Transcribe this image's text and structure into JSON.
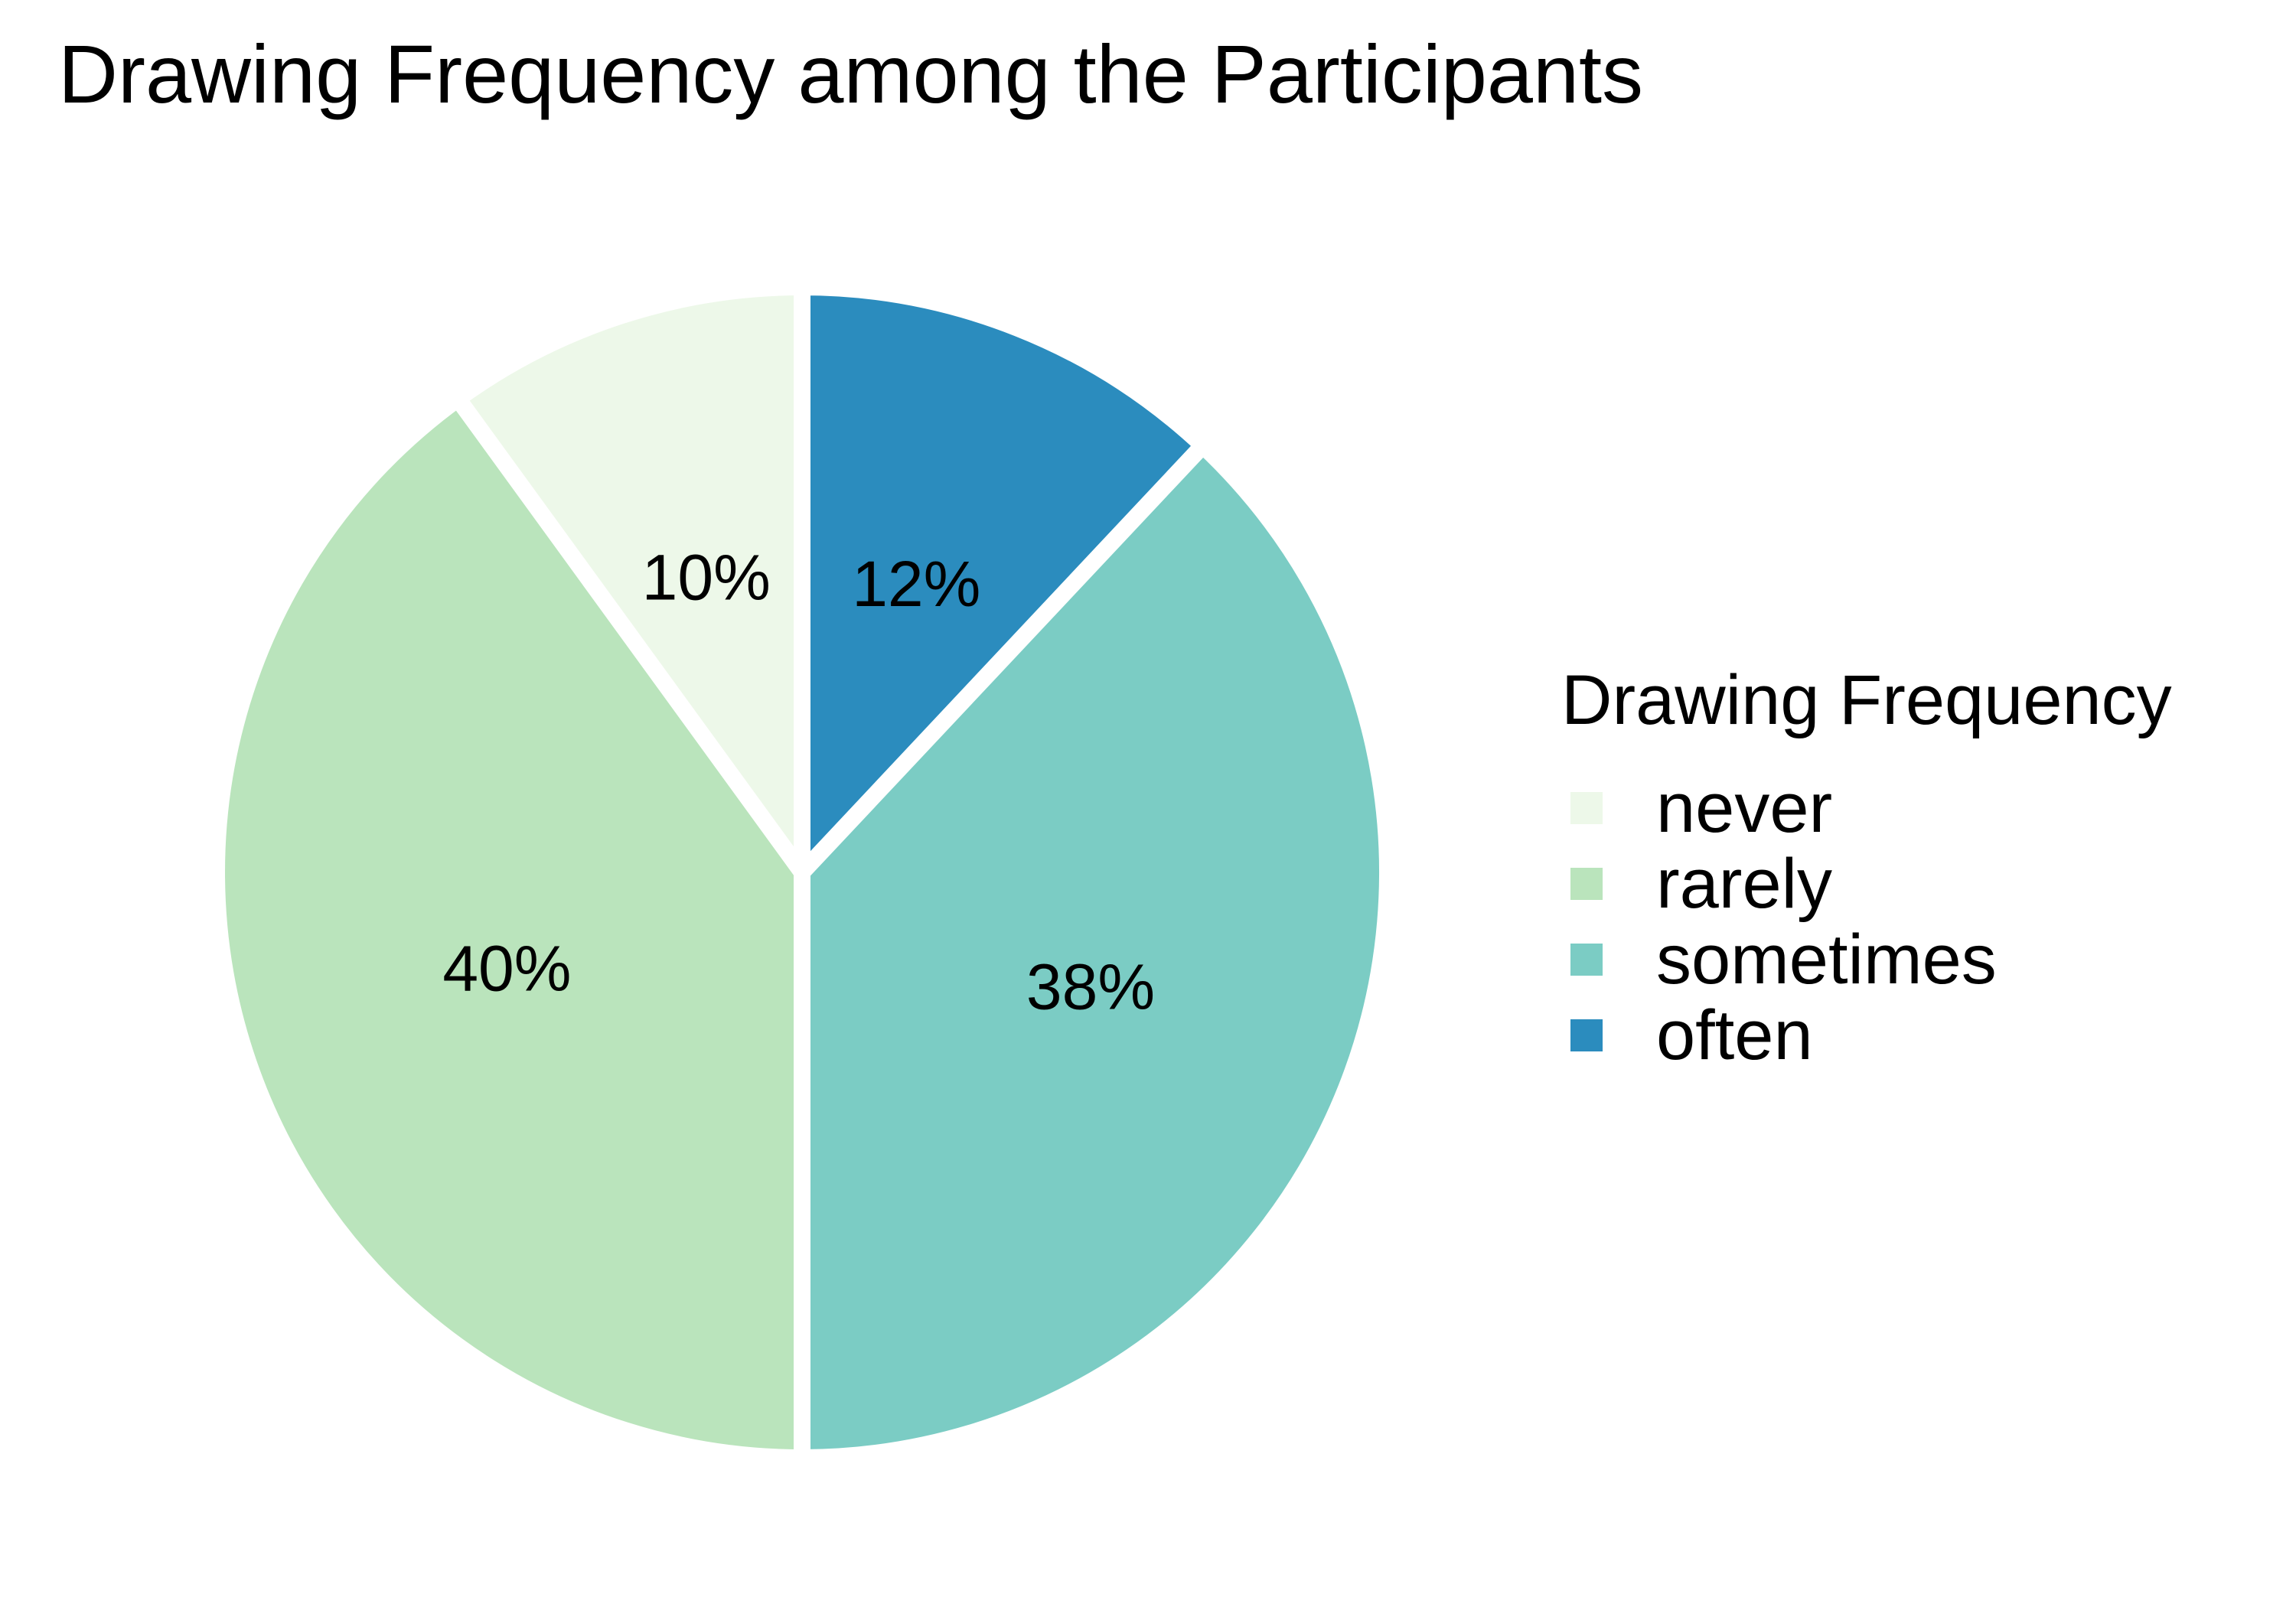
{
  "chart_data": {
    "type": "pie",
    "title": "Drawing Frequency among the Participants",
    "legend": {
      "title": "Drawing Frequency",
      "position": "right"
    },
    "slices": [
      {
        "label": "never",
        "value": 10,
        "display": "10%",
        "color": "#EDF8E9"
      },
      {
        "label": "rarely",
        "value": 40,
        "display": "40%",
        "color": "#BAE4BC"
      },
      {
        "label": "sometimes",
        "value": 38,
        "display": "38%",
        "color": "#7BCCC4"
      },
      {
        "label": "often",
        "value": 12,
        "display": "12%",
        "color": "#2B8CBE"
      }
    ],
    "slice_order_clockwise_from_top": [
      "often",
      "sometimes",
      "rarely",
      "never"
    ],
    "separator_color": "#FFFFFF"
  }
}
